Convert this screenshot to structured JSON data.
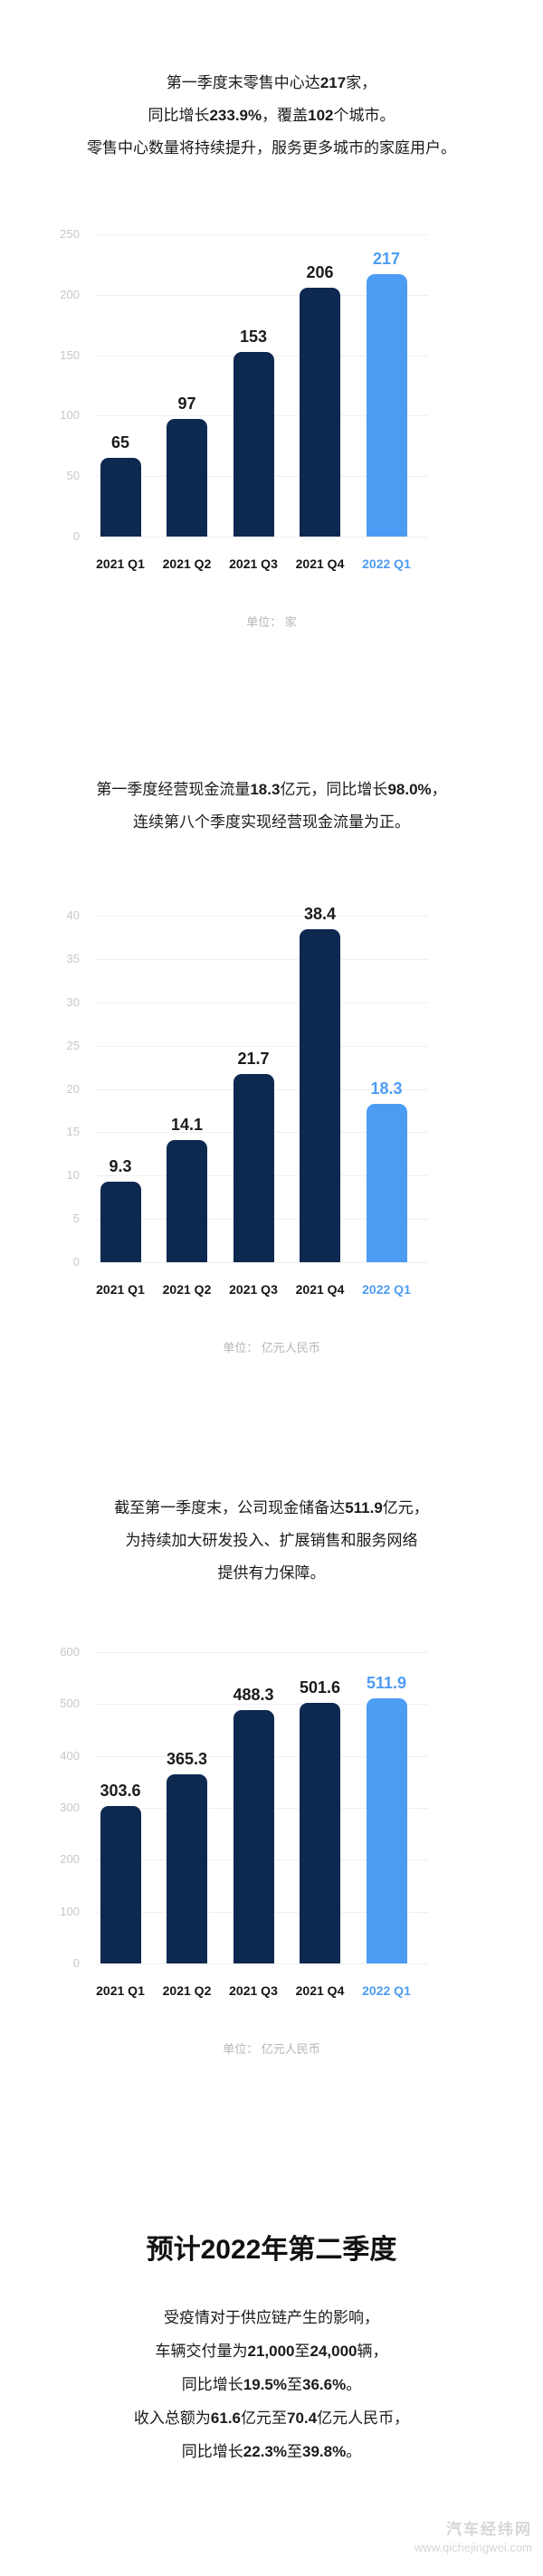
{
  "colors": {
    "bar_navy": "#0e2950",
    "bar_highlight_blue": "#4d9cf4",
    "gridline": "#efefef",
    "tick_label": "#c7c7c7",
    "unit_label": "#b5b5b5",
    "body_text": "#1b1b1b",
    "watermark": "#d6d6d6",
    "background": "#ffffff"
  },
  "sections": {
    "retail": {
      "lines": [
        [
          {
            "t": "第一季度末零售中心达"
          },
          {
            "t": "217",
            "b": true
          },
          {
            "t": "家，"
          }
        ],
        [
          {
            "t": "同比增长"
          },
          {
            "t": "233.9%",
            "b": true
          },
          {
            "t": "，覆盖"
          },
          {
            "t": "102",
            "b": true
          },
          {
            "t": "个城市。"
          }
        ],
        [
          {
            "t": "零售中心数量将持续提升，服务更多城市的家庭用户。"
          }
        ]
      ]
    },
    "cashflow": {
      "lines": [
        [
          {
            "t": "第一季度经营现金流量"
          },
          {
            "t": "18.3",
            "b": true
          },
          {
            "t": "亿元，同比增长"
          },
          {
            "t": "98.0%",
            "b": true
          },
          {
            "t": "，"
          }
        ],
        [
          {
            "t": "连续第八个季度实现经营现金流量为正。"
          }
        ]
      ]
    },
    "reserve": {
      "lines": [
        [
          {
            "t": "截至第一季度末，公司现金储备达"
          },
          {
            "t": "511.9",
            "b": true
          },
          {
            "t": "亿元，"
          }
        ],
        [
          {
            "t": "为持续加大研发投入、扩展销售和服务网络"
          }
        ],
        [
          {
            "t": "提供有力保障。"
          }
        ]
      ]
    }
  },
  "chart_data": [
    {
      "type": "bar",
      "categories": [
        "2021 Q1",
        "2021 Q2",
        "2021 Q3",
        "2021 Q4",
        "2022 Q1"
      ],
      "values": [
        65,
        97,
        153,
        206,
        217
      ],
      "value_labels": [
        "65",
        "97",
        "153",
        "206",
        "217"
      ],
      "unit_label": "单位： 家",
      "ylim": [
        0,
        250
      ],
      "yticks": [
        0,
        50,
        100,
        150,
        200,
        250
      ],
      "grid": true,
      "legend": "none",
      "highlight_index": 4
    },
    {
      "type": "bar",
      "categories": [
        "2021 Q1",
        "2021 Q2",
        "2021 Q3",
        "2021 Q4",
        "2022 Q1"
      ],
      "values": [
        9.3,
        14.1,
        21.7,
        38.4,
        18.3
      ],
      "value_labels": [
        "9.3",
        "14.1",
        "21.7",
        "38.4",
        "18.3"
      ],
      "unit_label": "单位： 亿元人民币",
      "ylim": [
        0,
        40
      ],
      "yticks": [
        0,
        5,
        10,
        15,
        20,
        25,
        30,
        35,
        40
      ],
      "grid": true,
      "legend": "none",
      "highlight_index": 4
    },
    {
      "type": "bar",
      "categories": [
        "2021 Q1",
        "2021 Q2",
        "2021 Q3",
        "2021 Q4",
        "2022 Q1"
      ],
      "values": [
        303.6,
        365.3,
        488.3,
        501.6,
        511.9
      ],
      "value_labels": [
        "303.6",
        "365.3",
        "488.3",
        "501.6",
        "511.9"
      ],
      "unit_label": "单位： 亿元人民币",
      "ylim": [
        0,
        600
      ],
      "yticks": [
        0,
        100,
        200,
        300,
        400,
        500,
        600
      ],
      "grid": true,
      "legend": "none",
      "highlight_index": 4
    }
  ],
  "forecast": {
    "title": "预计2022年第二季度",
    "lines": [
      [
        {
          "t": "受疫情对于供应链产生的影响，"
        }
      ],
      [
        {
          "t": "车辆交付量为"
        },
        {
          "t": "21,000",
          "b": true
        },
        {
          "t": "至"
        },
        {
          "t": "24,000",
          "b": true
        },
        {
          "t": "辆，"
        }
      ],
      [
        {
          "t": "同比增长"
        },
        {
          "t": "19.5%",
          "b": true
        },
        {
          "t": "至"
        },
        {
          "t": "36.6%",
          "b": true
        },
        {
          "t": "。"
        }
      ],
      [
        {
          "t": "收入总额为"
        },
        {
          "t": "61.6",
          "b": true
        },
        {
          "t": "亿元至"
        },
        {
          "t": "70.4",
          "b": true
        },
        {
          "t": "亿元人民币，"
        }
      ],
      [
        {
          "t": "同比增长"
        },
        {
          "t": "22.3%",
          "b": true
        },
        {
          "t": "至"
        },
        {
          "t": "39.8%",
          "b": true
        },
        {
          "t": "。"
        }
      ]
    ]
  },
  "watermark": {
    "name": "汽车经纬网",
    "url": "www.qichejingwei.com"
  }
}
